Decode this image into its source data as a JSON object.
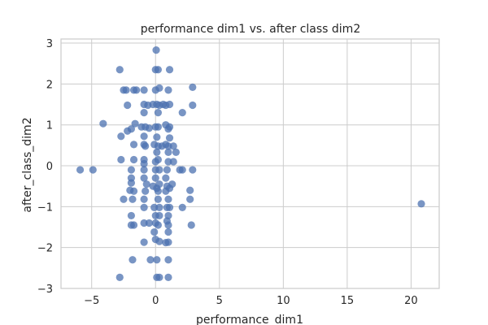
{
  "chart_data": {
    "type": "scatter",
    "title": "performance dim1 vs. after class dim2",
    "xlabel": "performance_dim1",
    "ylabel": "after_class_dim2",
    "xlim": [
      -7.4,
      22.2
    ],
    "ylim": [
      -3.0,
      3.1
    ],
    "xticks": [
      -5,
      0,
      5,
      10,
      15,
      20
    ],
    "yticks": [
      -3,
      -2,
      -1,
      0,
      1,
      2,
      3
    ],
    "grid": true,
    "marker_color": "#4c72b0",
    "points": [
      [
        0.05,
        2.83
      ],
      [
        -2.8,
        2.35
      ],
      [
        0.0,
        2.35
      ],
      [
        0.2,
        2.35
      ],
      [
        1.1,
        2.35
      ],
      [
        -1.7,
        1.85
      ],
      [
        -1.5,
        1.85
      ],
      [
        -2.5,
        1.85
      ],
      [
        -2.3,
        1.85
      ],
      [
        -0.9,
        1.85
      ],
      [
        0.0,
        1.85
      ],
      [
        0.3,
        1.9
      ],
      [
        1.0,
        1.85
      ],
      [
        2.9,
        1.92
      ],
      [
        -2.2,
        1.48
      ],
      [
        -0.9,
        1.5
      ],
      [
        -0.6,
        1.48
      ],
      [
        -0.2,
        1.5
      ],
      [
        0.1,
        1.5
      ],
      [
        0.3,
        1.48
      ],
      [
        0.6,
        1.5
      ],
      [
        0.8,
        1.48
      ],
      [
        1.1,
        1.5
      ],
      [
        2.9,
        1.48
      ],
      [
        -0.9,
        1.3
      ],
      [
        0.2,
        1.3
      ],
      [
        2.1,
        1.3
      ],
      [
        -4.1,
        1.03
      ],
      [
        -1.6,
        1.03
      ],
      [
        -0.8,
        0.95
      ],
      [
        -1.1,
        0.95
      ],
      [
        -0.5,
        0.92
      ],
      [
        0.0,
        0.95
      ],
      [
        0.2,
        0.95
      ],
      [
        0.8,
        1.0
      ],
      [
        1.0,
        0.9
      ],
      [
        1.1,
        0.95
      ],
      [
        -1.9,
        0.9
      ],
      [
        -2.2,
        0.85
      ],
      [
        -0.9,
        0.72
      ],
      [
        -2.7,
        0.72
      ],
      [
        0.1,
        0.7
      ],
      [
        1.1,
        0.68
      ],
      [
        -1.7,
        0.52
      ],
      [
        -0.9,
        0.52
      ],
      [
        -0.8,
        0.48
      ],
      [
        -0.1,
        0.52
      ],
      [
        0.2,
        0.48
      ],
      [
        0.5,
        0.48
      ],
      [
        0.8,
        0.52
      ],
      [
        1.0,
        0.48
      ],
      [
        1.4,
        0.48
      ],
      [
        0.1,
        0.33
      ],
      [
        1.0,
        0.33
      ],
      [
        1.6,
        0.33
      ],
      [
        -2.7,
        0.15
      ],
      [
        -1.7,
        0.15
      ],
      [
        -0.9,
        0.15
      ],
      [
        -0.9,
        0.05
      ],
      [
        0.0,
        0.1
      ],
      [
        0.2,
        0.15
      ],
      [
        1.0,
        0.1
      ],
      [
        1.4,
        0.1
      ],
      [
        -5.9,
        -0.1
      ],
      [
        -4.9,
        -0.1
      ],
      [
        -1.9,
        -0.1
      ],
      [
        -0.9,
        -0.1
      ],
      [
        0.0,
        -0.1
      ],
      [
        0.3,
        -0.1
      ],
      [
        0.9,
        -0.1
      ],
      [
        1.9,
        -0.1
      ],
      [
        2.1,
        -0.1
      ],
      [
        2.9,
        -0.1
      ],
      [
        -1.9,
        -0.3
      ],
      [
        -0.9,
        -0.3
      ],
      [
        0.0,
        -0.3
      ],
      [
        0.8,
        -0.3
      ],
      [
        -1.9,
        -0.42
      ],
      [
        -2.0,
        -0.6
      ],
      [
        -0.7,
        -0.45
      ],
      [
        -0.2,
        -0.5
      ],
      [
        0.1,
        -0.55
      ],
      [
        0.3,
        -0.45
      ],
      [
        0.9,
        -0.5
      ],
      [
        1.1,
        -0.55
      ],
      [
        1.3,
        -0.45
      ],
      [
        2.7,
        -0.6
      ],
      [
        -1.7,
        -0.62
      ],
      [
        -0.8,
        -0.62
      ],
      [
        0.2,
        -0.62
      ],
      [
        0.8,
        -0.62
      ],
      [
        -2.5,
        -0.82
      ],
      [
        -1.8,
        -0.82
      ],
      [
        -0.9,
        -0.82
      ],
      [
        0.2,
        -0.82
      ],
      [
        1.0,
        -0.82
      ],
      [
        2.7,
        -0.82
      ],
      [
        -0.9,
        -1.02
      ],
      [
        -0.1,
        -1.02
      ],
      [
        0.3,
        -1.02
      ],
      [
        0.9,
        -1.02
      ],
      [
        1.1,
        -1.02
      ],
      [
        2.1,
        -1.02
      ],
      [
        -1.9,
        -1.22
      ],
      [
        0.0,
        -1.22
      ],
      [
        0.3,
        -1.22
      ],
      [
        1.0,
        -1.22
      ],
      [
        -1.9,
        -1.45
      ],
      [
        -1.7,
        -1.45
      ],
      [
        -0.9,
        -1.4
      ],
      [
        -0.5,
        -1.4
      ],
      [
        0.0,
        -1.4
      ],
      [
        0.2,
        -1.45
      ],
      [
        0.9,
        -1.35
      ],
      [
        1.0,
        -1.45
      ],
      [
        2.8,
        -1.45
      ],
      [
        -0.1,
        -1.62
      ],
      [
        1.0,
        -1.62
      ],
      [
        -0.9,
        -1.87
      ],
      [
        0.0,
        -1.8
      ],
      [
        0.3,
        -1.85
      ],
      [
        0.8,
        -1.88
      ],
      [
        1.0,
        -1.87
      ],
      [
        -1.8,
        -2.3
      ],
      [
        -0.4,
        -2.3
      ],
      [
        0.1,
        -2.3
      ],
      [
        1.0,
        -2.3
      ],
      [
        -2.8,
        -2.73
      ],
      [
        0.1,
        -2.73
      ],
      [
        0.3,
        -2.73
      ],
      [
        1.0,
        -2.73
      ],
      [
        20.8,
        -0.93
      ]
    ]
  }
}
